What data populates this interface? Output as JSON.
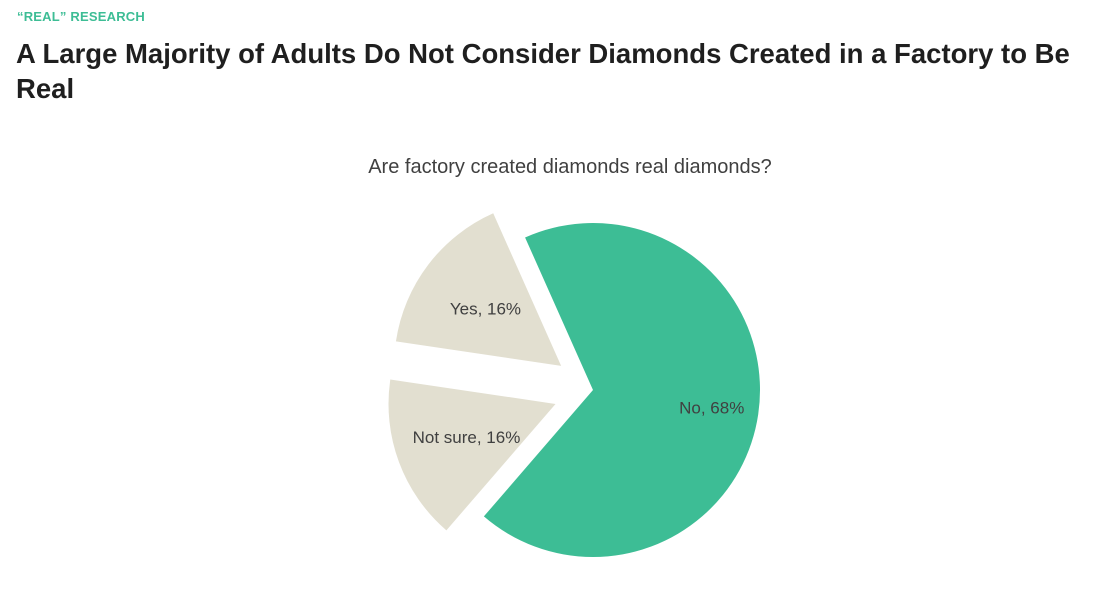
{
  "header": {
    "kicker": "“REAL” RESEARCH",
    "title": "A Large Majority of Adults Do Not Consider Diamonds Created in a Factory to Be Real"
  },
  "chart_data": {
    "type": "pie",
    "title": "Are factory created diamonds real diamonds?",
    "categories": [
      "No",
      "Not sure",
      "Yes"
    ],
    "values": [
      68,
      16,
      16
    ],
    "data_labels": [
      "No, 68%",
      "Not sure, 16%",
      "Yes, 16%"
    ],
    "exploded": [
      false,
      true,
      true
    ],
    "colors": [
      "#3dbd95",
      "#e2dfd0",
      "#e2dfd0"
    ],
    "legend": "none"
  }
}
